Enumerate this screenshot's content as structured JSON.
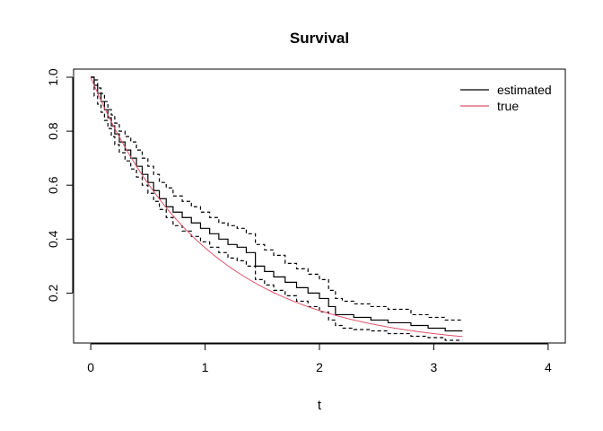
{
  "chart_data": {
    "type": "line",
    "title": "Survival",
    "xlabel": "t",
    "ylabel": "",
    "xlim": [
      -0.15,
      4.15
    ],
    "ylim": [
      0.015,
      1.03
    ],
    "xticks": [
      0,
      1,
      2,
      3,
      4
    ],
    "yticks": [
      0.2,
      0.4,
      0.6,
      0.8,
      1.0
    ],
    "xtick_labels": [
      "0",
      "1",
      "2",
      "3",
      "4"
    ],
    "ytick_labels": [
      "0.2",
      "0.4",
      "0.6",
      "0.8",
      "1.0"
    ],
    "grid": false,
    "legend_position": "top-right",
    "series": [
      {
        "name": "estimated",
        "color": "#000000",
        "style": "step",
        "x": [
          0.0,
          0.03,
          0.06,
          0.09,
          0.12,
          0.15,
          0.18,
          0.21,
          0.25,
          0.3,
          0.35,
          0.4,
          0.45,
          0.5,
          0.55,
          0.6,
          0.66,
          0.72,
          0.8,
          0.88,
          0.96,
          1.04,
          1.12,
          1.2,
          1.28,
          1.36,
          1.44,
          1.52,
          1.6,
          1.7,
          1.8,
          1.9,
          2.0,
          2.08,
          2.14,
          2.2,
          2.3,
          2.45,
          2.6,
          2.8,
          2.95,
          3.1,
          3.25
        ],
        "y": [
          1.0,
          0.97,
          0.94,
          0.91,
          0.88,
          0.85,
          0.82,
          0.79,
          0.76,
          0.73,
          0.7,
          0.67,
          0.64,
          0.61,
          0.58,
          0.55,
          0.52,
          0.5,
          0.48,
          0.46,
          0.44,
          0.42,
          0.4,
          0.38,
          0.37,
          0.35,
          0.3,
          0.28,
          0.26,
          0.24,
          0.22,
          0.2,
          0.18,
          0.15,
          0.12,
          0.12,
          0.11,
          0.1,
          0.09,
          0.08,
          0.07,
          0.06,
          0.06
        ]
      },
      {
        "name": "upper CI",
        "color": "#000000",
        "style": "step-dashed",
        "x": [
          0.0,
          0.03,
          0.06,
          0.09,
          0.12,
          0.15,
          0.18,
          0.21,
          0.25,
          0.3,
          0.35,
          0.4,
          0.45,
          0.5,
          0.55,
          0.6,
          0.66,
          0.72,
          0.8,
          0.88,
          0.96,
          1.04,
          1.12,
          1.2,
          1.28,
          1.36,
          1.44,
          1.52,
          1.6,
          1.7,
          1.8,
          1.9,
          2.0,
          2.08,
          2.14,
          2.2,
          2.3,
          2.45,
          2.6,
          2.8,
          2.95,
          3.1,
          3.25
        ],
        "y": [
          1.0,
          0.99,
          0.96,
          0.94,
          0.91,
          0.88,
          0.86,
          0.83,
          0.8,
          0.78,
          0.76,
          0.73,
          0.7,
          0.67,
          0.64,
          0.61,
          0.59,
          0.56,
          0.54,
          0.52,
          0.5,
          0.48,
          0.46,
          0.45,
          0.44,
          0.42,
          0.38,
          0.36,
          0.34,
          0.31,
          0.29,
          0.27,
          0.25,
          0.21,
          0.18,
          0.17,
          0.16,
          0.15,
          0.14,
          0.12,
          0.11,
          0.1,
          0.1
        ]
      },
      {
        "name": "lower CI",
        "color": "#000000",
        "style": "step-dashed",
        "x": [
          0.0,
          0.03,
          0.06,
          0.09,
          0.12,
          0.15,
          0.18,
          0.21,
          0.25,
          0.3,
          0.35,
          0.4,
          0.45,
          0.5,
          0.55,
          0.6,
          0.66,
          0.72,
          0.8,
          0.88,
          0.96,
          1.04,
          1.12,
          1.2,
          1.28,
          1.36,
          1.44,
          1.52,
          1.6,
          1.7,
          1.8,
          1.9,
          2.0,
          2.08,
          2.14,
          2.2,
          2.3,
          2.45,
          2.6,
          2.8,
          2.95,
          3.1,
          3.25
        ],
        "y": [
          1.0,
          0.93,
          0.9,
          0.87,
          0.84,
          0.81,
          0.78,
          0.75,
          0.72,
          0.69,
          0.66,
          0.63,
          0.6,
          0.57,
          0.54,
          0.51,
          0.48,
          0.45,
          0.43,
          0.41,
          0.39,
          0.37,
          0.35,
          0.33,
          0.32,
          0.3,
          0.25,
          0.23,
          0.21,
          0.19,
          0.17,
          0.15,
          0.13,
          0.1,
          0.08,
          0.07,
          0.065,
          0.06,
          0.05,
          0.04,
          0.035,
          0.025,
          0.025
        ]
      },
      {
        "name": "true",
        "color": "#df536b",
        "style": "smooth",
        "function": "exp(-t)",
        "x": [
          0,
          0.25,
          0.5,
          0.75,
          1.0,
          1.25,
          1.5,
          1.75,
          2.0,
          2.25,
          2.5,
          2.75,
          3.0,
          3.25
        ],
        "y": [
          1.0,
          0.779,
          0.607,
          0.472,
          0.368,
          0.287,
          0.223,
          0.174,
          0.135,
          0.105,
          0.082,
          0.064,
          0.05,
          0.039
        ]
      }
    ],
    "legend": [
      {
        "label": "estimated",
        "color": "#000000"
      },
      {
        "label": "true",
        "color": "#df536b"
      }
    ]
  }
}
